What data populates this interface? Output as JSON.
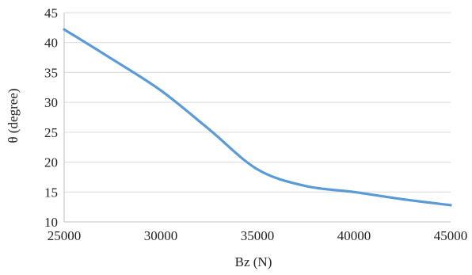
{
  "chart_data": {
    "type": "line",
    "title": "",
    "xlabel": "Bz (N)",
    "ylabel": "θ (degree)",
    "xlim": [
      25000,
      45000
    ],
    "ylim": [
      10,
      45
    ],
    "x_ticks": [
      25000,
      30000,
      35000,
      40000,
      45000
    ],
    "y_ticks": [
      10,
      15,
      20,
      25,
      30,
      35,
      40,
      45
    ],
    "grid": "horizontal",
    "legend": "none",
    "series": [
      {
        "color": "#5b9bd5",
        "points": [
          [
            25000,
            42.2
          ],
          [
            27500,
            37.2
          ],
          [
            30000,
            32.0
          ],
          [
            32500,
            25.5
          ],
          [
            35000,
            18.8
          ],
          [
            37500,
            16.0
          ],
          [
            40000,
            15.0
          ],
          [
            42500,
            13.8
          ],
          [
            45000,
            12.8
          ]
        ]
      }
    ]
  }
}
